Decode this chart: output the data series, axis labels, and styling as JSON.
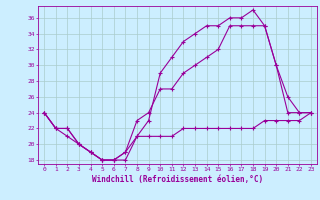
{
  "xlabel": "Windchill (Refroidissement éolien,°C)",
  "bg_color": "#cceeff",
  "line_color": "#990099",
  "grid_color": "#aacccc",
  "xlim": [
    -0.5,
    23.5
  ],
  "ylim": [
    17.5,
    37.5
  ],
  "yticks": [
    18,
    20,
    22,
    24,
    26,
    28,
    30,
    32,
    34,
    36
  ],
  "xticks": [
    0,
    1,
    2,
    3,
    4,
    5,
    6,
    7,
    8,
    9,
    10,
    11,
    12,
    13,
    14,
    15,
    16,
    17,
    18,
    19,
    20,
    21,
    22,
    23
  ],
  "line1_x": [
    0,
    1,
    2,
    3,
    4,
    5,
    6,
    7,
    8,
    9,
    10,
    11,
    12,
    13,
    14,
    15,
    16,
    17,
    18,
    19,
    20,
    21,
    22,
    23
  ],
  "line1_y": [
    24,
    22,
    22,
    20,
    19,
    18,
    18,
    18,
    21,
    23,
    29,
    31,
    33,
    34,
    35,
    35,
    36,
    36,
    37,
    35,
    30,
    26,
    24,
    24
  ],
  "line2_x": [
    0,
    1,
    2,
    3,
    4,
    5,
    6,
    7,
    8,
    9,
    10,
    11,
    12,
    13,
    14,
    15,
    16,
    17,
    18,
    19,
    20,
    21,
    22,
    23
  ],
  "line2_y": [
    24,
    22,
    21,
    20,
    19,
    18,
    18,
    19,
    23,
    24,
    27,
    27,
    29,
    30,
    31,
    32,
    35,
    35,
    35,
    35,
    30,
    24,
    24,
    24
  ],
  "line3_x": [
    0,
    1,
    2,
    3,
    4,
    5,
    6,
    7,
    8,
    9,
    10,
    11,
    12,
    13,
    14,
    15,
    16,
    17,
    18,
    19,
    20,
    21,
    22,
    23
  ],
  "line3_y": [
    24,
    22,
    22,
    20,
    19,
    18,
    18,
    19,
    21,
    21,
    21,
    21,
    22,
    22,
    22,
    22,
    22,
    22,
    22,
    23,
    23,
    23,
    23,
    24
  ]
}
